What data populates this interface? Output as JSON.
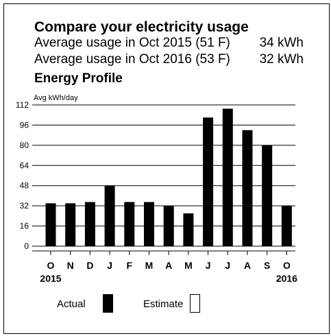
{
  "header": {
    "title": "Compare your electricity usage",
    "comparisons": [
      {
        "label": "Average usage in Oct 2015 (51 F)",
        "value": "34 kWh"
      },
      {
        "label": "Average usage in Oct 2016 (53 F)",
        "value": "32 kWh"
      }
    ],
    "section_title": "Energy Profile"
  },
  "legend": {
    "actual_label": "Actual",
    "estimate_label": "Estimate"
  },
  "chart_data": {
    "type": "bar",
    "ylabel": "Avg kWh/day",
    "ylim": [
      0,
      112
    ],
    "yticks": [
      0,
      16,
      32,
      48,
      64,
      80,
      96,
      112
    ],
    "grid": true,
    "categories": [
      "O",
      "N",
      "D",
      "J",
      "F",
      "M",
      "A",
      "M",
      "J",
      "J",
      "A",
      "S",
      "O"
    ],
    "year_labels": [
      {
        "index": 0,
        "text": "2015"
      },
      {
        "index": 12,
        "text": "2016"
      }
    ],
    "series": [
      {
        "name": "Actual",
        "values": [
          34,
          34,
          35,
          48,
          35,
          35,
          32,
          26,
          102,
          109,
          92,
          80,
          32
        ]
      }
    ],
    "colors": {
      "actual": "#000000",
      "estimate": "#ffffff",
      "grid": "#000000"
    }
  }
}
